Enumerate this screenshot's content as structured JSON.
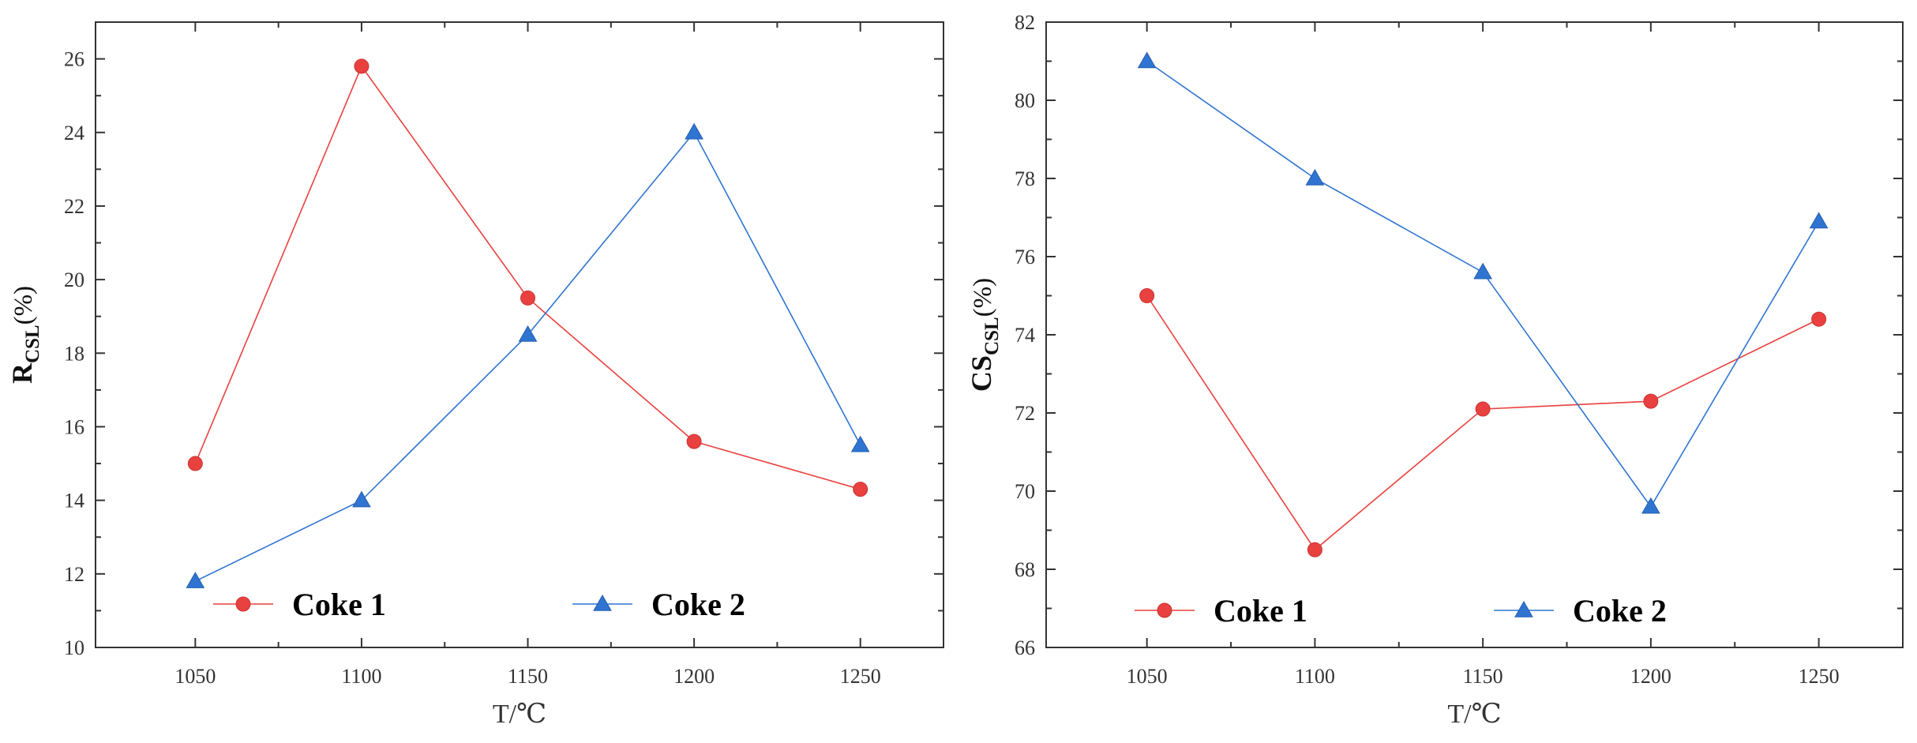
{
  "chart_data": [
    {
      "type": "line",
      "xlabel": "T/℃",
      "ylabel": {
        "main": "R",
        "sub": "CSL",
        "unit": "(%)"
      },
      "xlim": [
        1020,
        1275
      ],
      "ylim": [
        10,
        27
      ],
      "xticks": [
        1050,
        1100,
        1150,
        1200,
        1250
      ],
      "yticks": [
        10,
        12,
        14,
        16,
        18,
        20,
        22,
        24,
        26
      ],
      "legend_position": "bottom",
      "series": [
        {
          "name": "Coke 1",
          "color": "#e8413f",
          "marker": "circle",
          "x": [
            1050,
            1100,
            1150,
            1200,
            1250
          ],
          "values": [
            15.0,
            25.8,
            19.5,
            15.6,
            14.3
          ]
        },
        {
          "name": "Coke 2",
          "color": "#2f74d0",
          "marker": "triangle",
          "x": [
            1050,
            1100,
            1150,
            1200,
            1250
          ],
          "values": [
            11.8,
            14.0,
            18.5,
            24.0,
            15.5
          ]
        }
      ]
    },
    {
      "type": "line",
      "xlabel": "T/℃",
      "ylabel": {
        "main": "CS",
        "sub": "CSL",
        "unit": "(%)"
      },
      "xlim": [
        1020,
        1275
      ],
      "ylim": [
        66,
        82
      ],
      "xticks": [
        1050,
        1100,
        1150,
        1200,
        1250
      ],
      "yticks": [
        66,
        68,
        70,
        72,
        74,
        76,
        78,
        80,
        82
      ],
      "legend_position": "bottom",
      "series": [
        {
          "name": "Coke 1",
          "color": "#e8413f",
          "marker": "circle",
          "x": [
            1050,
            1100,
            1150,
            1200,
            1250
          ],
          "values": [
            75.0,
            68.5,
            72.1,
            72.3,
            74.4
          ]
        },
        {
          "name": "Coke 2",
          "color": "#2f74d0",
          "marker": "triangle",
          "x": [
            1050,
            1100,
            1150,
            1200,
            1250
          ],
          "values": [
            81.0,
            78.0,
            75.6,
            69.6,
            76.9
          ]
        }
      ]
    }
  ]
}
